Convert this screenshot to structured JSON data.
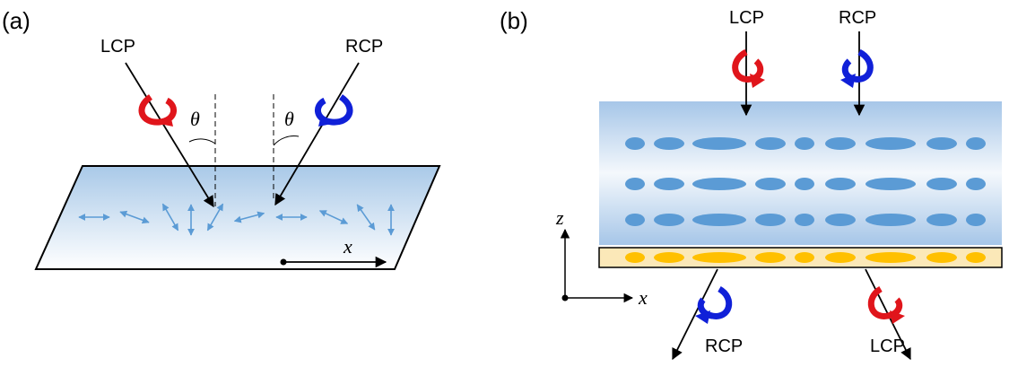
{
  "panels": [
    {
      "label": "(a)",
      "beams": [
        "LCP",
        "RCP"
      ],
      "angle_labels": [
        "θ",
        "θ"
      ],
      "axis_label": "x"
    },
    {
      "label": "(b)",
      "incident": [
        "LCP",
        "RCP"
      ],
      "transmitted": [
        "RCP",
        "LCP"
      ],
      "axes": [
        "z",
        "x"
      ]
    }
  ]
}
